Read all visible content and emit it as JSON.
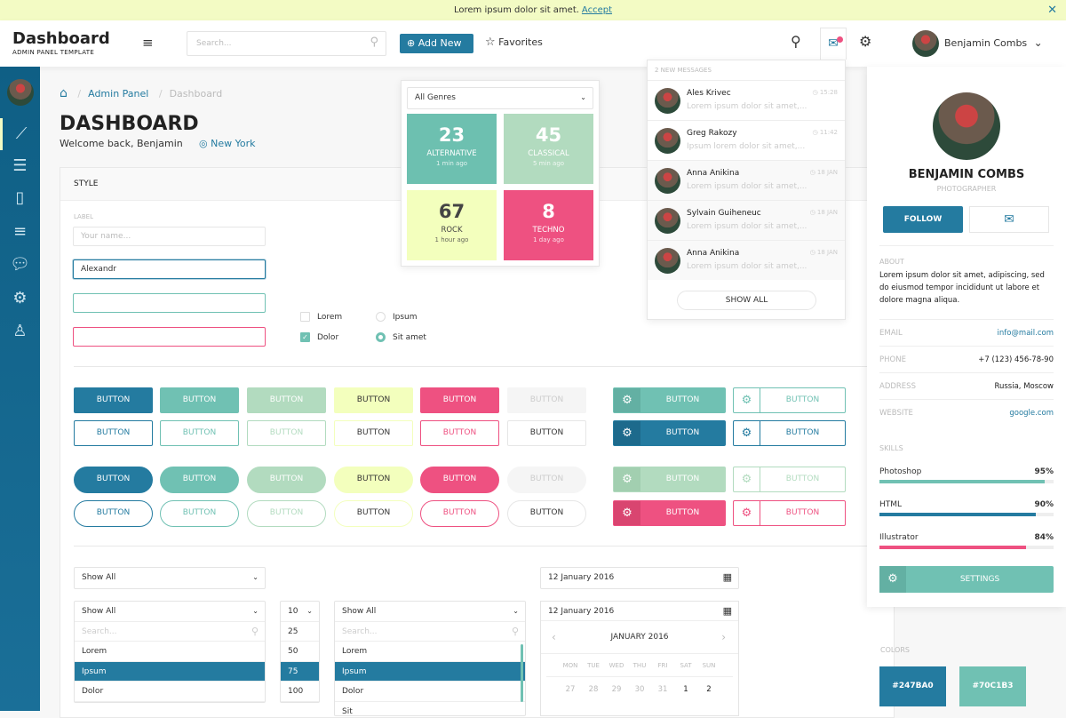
{
  "banner": {
    "text": "Lorem ipsum dolor sit amet.",
    "link": "Accept",
    "close_icon": "close-icon"
  },
  "header": {
    "title": "Dashboard",
    "subtitle": "ADMIN PANEL TEMPLATE",
    "search_placeholder": "Search...",
    "add_new": "Add New",
    "favorites": "Favorites",
    "user_name": "Benjamin Combs"
  },
  "breadcrumb": {
    "items": [
      "Admin Panel",
      "Dashboard"
    ]
  },
  "page": {
    "title": "DASHBOARD",
    "welcome": "Welcome back, Benjamin",
    "location": "New York"
  },
  "card": {
    "title": "STYLE",
    "label": "LABEL",
    "name_placeholder": "Your name...",
    "name_value": "Alexandr"
  },
  "checks": [
    {
      "label": "Lorem",
      "checked": false
    },
    {
      "label": "Dolor",
      "checked": true
    }
  ],
  "radios": [
    {
      "label": "Ipsum",
      "selected": false
    },
    {
      "label": "Sit amet",
      "selected": true
    }
  ],
  "colors": {
    "blue": "#247BA0",
    "teal": "#70C1B3",
    "green": "#B2DBBF",
    "yellow": "#F3FFBD",
    "pink": "#EE5181",
    "gray": "#F5F5F5"
  },
  "buttons": {
    "label": "BUTTON",
    "variants": [
      "blue",
      "teal",
      "green",
      "yellow",
      "pink",
      "gray"
    ],
    "icon_rows": [
      {
        "fill": "teal",
        "outline": "teal"
      },
      {
        "fill": "blue",
        "outline": "blue"
      },
      {
        "fill": "green",
        "outline": "green"
      },
      {
        "fill": "pink",
        "outline": "pink"
      }
    ]
  },
  "genres": {
    "select": "All Genres",
    "tiles": [
      {
        "count": "23",
        "name": "ALTERNATIVE",
        "time": "1 min ago",
        "color": "#6DC0B0"
      },
      {
        "count": "45",
        "name": "CLASSICAL",
        "time": "5 min ago",
        "color": "#B2DBBF"
      },
      {
        "count": "67",
        "name": "ROCK",
        "time": "1 hour ago",
        "color": "#F3FFBD"
      },
      {
        "count": "8",
        "name": "TECHNO",
        "time": "1 day ago",
        "color": "#EE5181"
      }
    ]
  },
  "messages": {
    "header": "2 NEW MESSAGES",
    "show_all": "SHOW ALL",
    "items": [
      {
        "name": "Ales Krivec",
        "preview": "Lorem ipsum dolor sit amet,...",
        "time": "15:28"
      },
      {
        "name": "Greg Rakozy",
        "preview": "Ipsum lorem dolor sit amet,...",
        "time": "11:42"
      },
      {
        "name": "Anna Anikina",
        "preview": "Lorem ipsum dolor sit amet,...",
        "time": "18 JAN"
      },
      {
        "name": "Sylvain Guiheneuc",
        "preview": "Lorem ipsum dolor sit amet,...",
        "time": "18 JAN"
      },
      {
        "name": "Anna Anikina",
        "preview": "Lorem ipsum dolor sit amet,...",
        "time": "18 JAN"
      }
    ]
  },
  "profile": {
    "name": "BENJAMIN COMBS",
    "role": "PHOTOGRAPHER",
    "follow": "FOLLOW",
    "about_label": "ABOUT",
    "about": "Lorem ipsum dolor sit amet, adipiscing, sed do eiusmod tempor incididunt ut labore et dolore magna aliqua.",
    "fields": [
      {
        "k": "EMAIL",
        "v": "info@mail.com",
        "link": true
      },
      {
        "k": "PHONE",
        "v": "+7 (123) 456-78-90"
      },
      {
        "k": "ADDRESS",
        "v": "Russia, Moscow"
      },
      {
        "k": "WEBSITE",
        "v": "google.com",
        "link": true
      }
    ],
    "skills_label": "SKILLS",
    "skills": [
      {
        "name": "Photoshop",
        "pct": "95%",
        "value": 95,
        "color": "#70C1B3"
      },
      {
        "name": "HTML",
        "pct": "90%",
        "value": 90,
        "color": "#247BA0"
      },
      {
        "name": "Illustrator",
        "pct": "84%",
        "value": 84,
        "color": "#EE5181"
      }
    ],
    "settings": "SETTINGS"
  },
  "selects": {
    "show_all": "Show All",
    "search_placeholder": "Search...",
    "list1": [
      "Lorem",
      "Ipsum",
      "Dolor"
    ],
    "list1_selected": 1,
    "count_value": "10",
    "counts": [
      "25",
      "50",
      "75",
      "100"
    ],
    "counts_selected": 2,
    "list2": [
      "Lorem",
      "Ipsum",
      "Dolor",
      "Sit"
    ],
    "list2_selected": 1
  },
  "date": {
    "value": "12 January 2016",
    "month": "JANUARY 2016",
    "days": [
      "MON",
      "TUE",
      "WED",
      "THU",
      "FRI",
      "SAT",
      "SUN"
    ],
    "first_row": [
      "27",
      "28",
      "29",
      "30",
      "31",
      "1",
      "2"
    ]
  },
  "swatches": {
    "label": "COLORS",
    "items": [
      "#247BA0",
      "#70C1B3"
    ]
  }
}
